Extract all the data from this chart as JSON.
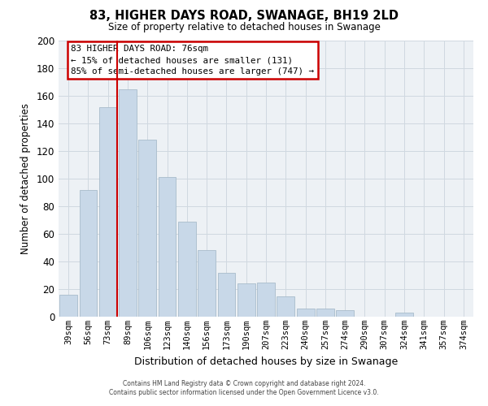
{
  "title": "83, HIGHER DAYS ROAD, SWANAGE, BH19 2LD",
  "subtitle": "Size of property relative to detached houses in Swanage",
  "xlabel": "Distribution of detached houses by size in Swanage",
  "ylabel": "Number of detached properties",
  "bar_color": "#c8d8e8",
  "bar_edge_color": "#a8bccb",
  "categories": [
    "39sqm",
    "56sqm",
    "73sqm",
    "89sqm",
    "106sqm",
    "123sqm",
    "140sqm",
    "156sqm",
    "173sqm",
    "190sqm",
    "207sqm",
    "223sqm",
    "240sqm",
    "257sqm",
    "274sqm",
    "290sqm",
    "307sqm",
    "324sqm",
    "341sqm",
    "357sqm",
    "374sqm"
  ],
  "values": [
    16,
    92,
    152,
    165,
    128,
    101,
    69,
    48,
    32,
    24,
    25,
    15,
    6,
    6,
    5,
    0,
    0,
    3,
    0,
    0,
    0
  ],
  "ylim": [
    0,
    200
  ],
  "yticks": [
    0,
    20,
    40,
    60,
    80,
    100,
    120,
    140,
    160,
    180,
    200
  ],
  "ref_line_index": 2,
  "annotation_title": "83 HIGHER DAYS ROAD: 76sqm",
  "annotation_line1": "← 15% of detached houses are smaller (131)",
  "annotation_line2": "85% of semi-detached houses are larger (747) →",
  "ref_line_color": "#cc0000",
  "grid_color": "#d0d8e0",
  "background_color": "#edf1f5",
  "footer_line1": "Contains HM Land Registry data © Crown copyright and database right 2024.",
  "footer_line2": "Contains public sector information licensed under the Open Government Licence v3.0."
}
